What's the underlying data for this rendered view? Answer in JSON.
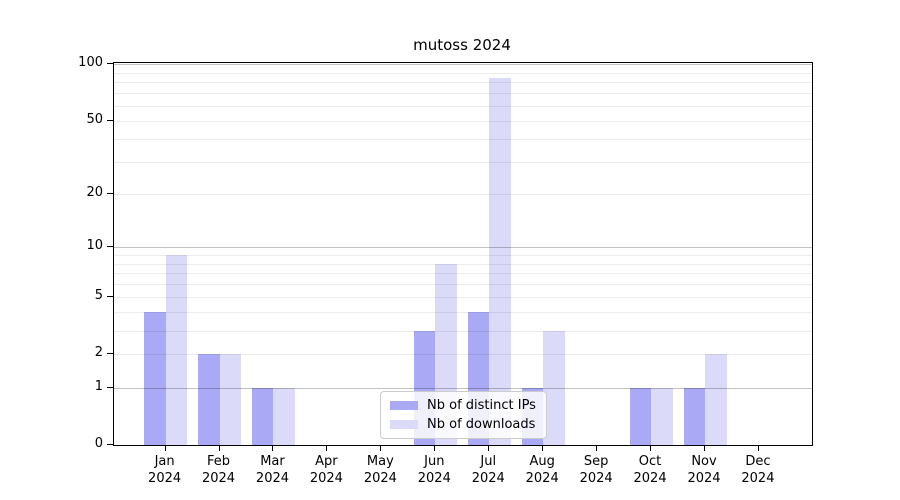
{
  "chart_data": {
    "type": "bar",
    "title": "mutoss 2024",
    "categories": [
      "Jan",
      "Feb",
      "Mar",
      "Apr",
      "May",
      "Jun",
      "Jul",
      "Aug",
      "Sep",
      "Oct",
      "Nov",
      "Dec"
    ],
    "x_year_label": "2024",
    "series": [
      {
        "name": "Nb of distinct IPs",
        "color": "#a9a9f5",
        "values": [
          4,
          2,
          1,
          0,
          0,
          3,
          4,
          1,
          0,
          1,
          1,
          0
        ]
      },
      {
        "name": "Nb of downloads",
        "color": "#dbdbf9",
        "values": [
          9,
          2,
          1,
          0,
          0,
          8,
          85,
          3,
          0,
          1,
          2,
          0
        ]
      }
    ],
    "y_scale": "log1p",
    "ylim": [
      0,
      100
    ],
    "y_ticks": [
      0,
      1,
      2,
      5,
      10,
      20,
      50,
      100
    ],
    "gridlines": {
      "major": [
        1,
        10,
        100
      ],
      "minor": [
        2,
        3,
        4,
        5,
        6,
        7,
        8,
        9,
        20,
        30,
        40,
        50,
        60,
        70,
        80,
        90
      ]
    },
    "legend_position": "inside-bottom-center",
    "grid": "horizontal"
  }
}
